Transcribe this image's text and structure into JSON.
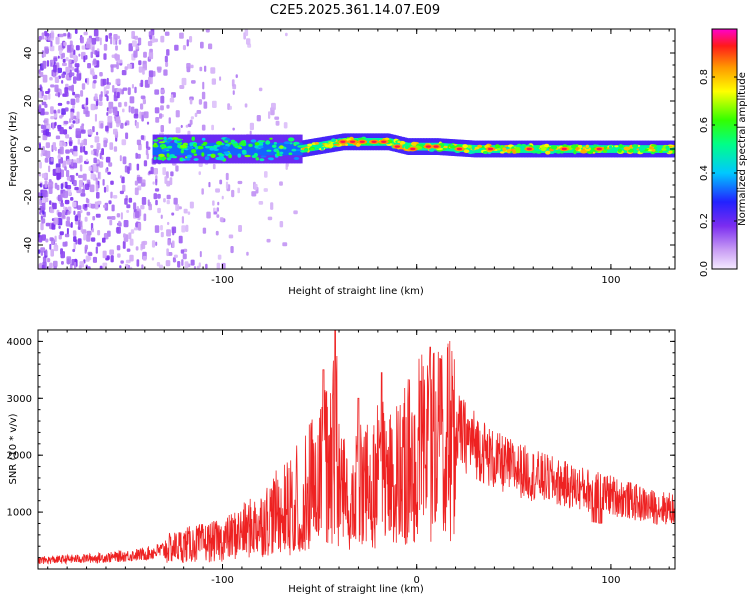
{
  "title": "C2E5.2025.361.14.07.E09",
  "chart_data": [
    {
      "type": "heatmap",
      "xlabel": "Height of straight line (km)",
      "ylabel": "Frequency (Hz)",
      "xlim": [
        -195,
        133
      ],
      "ylim": [
        -50,
        50
      ],
      "x_ticks": [
        -100,
        0,
        100
      ],
      "x_tick_labels": [
        "-100",
        "",
        "100"
      ],
      "y_ticks": [
        -40,
        -20,
        0,
        20,
        40
      ],
      "y_tick_labels": [
        "-40",
        "-20",
        "0",
        "20",
        "40"
      ],
      "colorbar": {
        "label": "Normalized spectral amplitude",
        "range": [
          0,
          1
        ],
        "ticks": [
          0.0,
          0.2,
          0.4,
          0.6,
          0.8
        ],
        "tick_labels": [
          "0.0",
          "0.2",
          "0.4",
          "0.6",
          "0.8"
        ],
        "colormap": [
          "#f5eaff",
          "#c89cf4",
          "#7b2cf0",
          "#2222ff",
          "#00c8ff",
          "#00ff88",
          "#33ff00",
          "#ffff00",
          "#ff9900",
          "#ff1a1a",
          "#ff00cc"
        ]
      },
      "band_center_hz": [
        [
          -135,
          0
        ],
        [
          -60,
          0
        ],
        [
          -38,
          3
        ],
        [
          -15,
          3
        ],
        [
          -5,
          1
        ],
        [
          10,
          1
        ],
        [
          30,
          0
        ],
        [
          133,
          0
        ]
      ],
      "noise_region_km": [
        -195,
        -60
      ]
    },
    {
      "type": "line",
      "xlabel": "Height of straight line (km)",
      "ylabel": "SNR (10 * v/v)",
      "xlim": [
        -195,
        133
      ],
      "ylim": [
        0,
        4200
      ],
      "x_ticks": [
        -100,
        0,
        100
      ],
      "x_tick_labels": [
        "-100",
        "0",
        "100"
      ],
      "y_ticks": [
        1000,
        2000,
        3000,
        4000
      ],
      "y_tick_labels": [
        "1000",
        "2000",
        "3000",
        "4000"
      ],
      "line_color": "#ee2222",
      "series": [
        {
          "name": "SNR",
          "x": [
            -195,
            -160,
            -140,
            -120,
            -100,
            -80,
            -60,
            -45,
            -40,
            -30,
            -20,
            -10,
            0,
            10,
            20,
            30,
            40,
            60,
            80,
            100,
            120,
            133
          ],
          "y": [
            150,
            200,
            260,
            420,
            500,
            800,
            1300,
            2000,
            1700,
            1400,
            1700,
            1700,
            2200,
            2300,
            2450,
            2200,
            1900,
            1650,
            1450,
            1300,
            1100,
            1050
          ]
        }
      ],
      "spikes": [
        {
          "x": -42,
          "y": 4200
        },
        {
          "x": -48,
          "y": 3500
        },
        {
          "x": -18,
          "y": 3450
        },
        {
          "x": 7,
          "y": 3900
        },
        {
          "x": 12,
          "y": 3700
        },
        {
          "x": 2,
          "y": 3300
        },
        {
          "x": -30,
          "y": 3000
        }
      ]
    }
  ]
}
